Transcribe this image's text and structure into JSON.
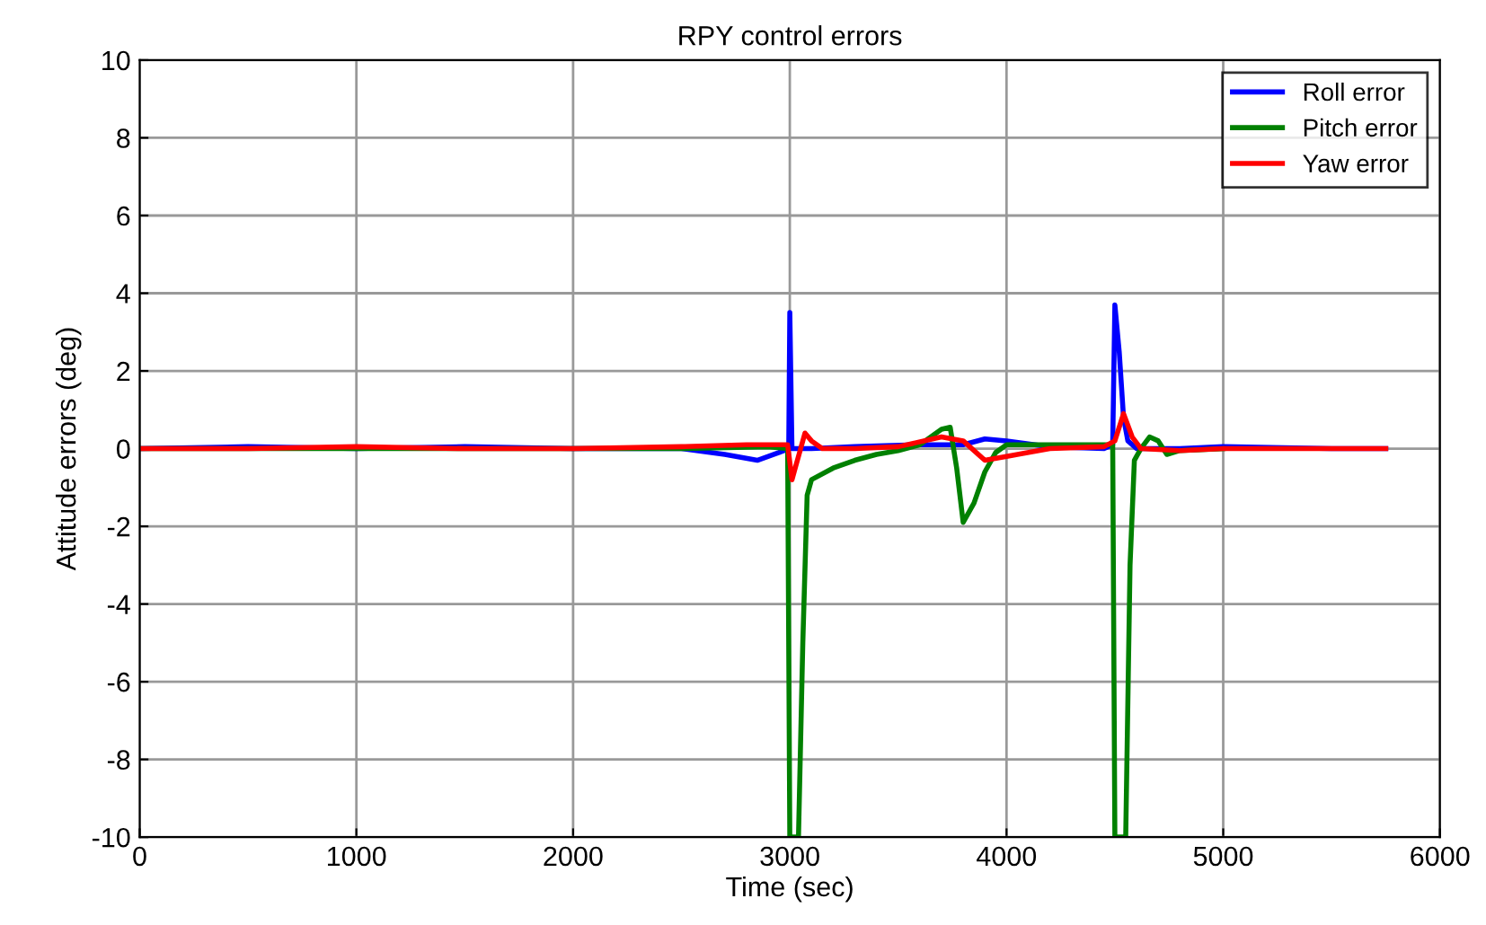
{
  "chart_data": {
    "type": "line",
    "title": "RPY control errors",
    "xlabel": "Time (sec)",
    "ylabel": "Attitude errors (deg)",
    "xlim": [
      0,
      6000
    ],
    "xticks": [
      0,
      1000,
      2000,
      3000,
      4000,
      5000,
      6000
    ],
    "ylim": [
      -10,
      10
    ],
    "yticks": [
      -10,
      -8,
      -6,
      -4,
      -2,
      0,
      2,
      4,
      6,
      8,
      10
    ],
    "grid": true,
    "legend": "top right",
    "marker": "none",
    "line_style": "solid",
    "series": [
      {
        "name": "Roll error",
        "color": "#0000ff",
        "x": [
          0,
          500,
          1000,
          1500,
          2000,
          2500,
          2700,
          2850,
          2950,
          2995,
          3000,
          3010,
          3030,
          3100,
          3300,
          3600,
          3800,
          3900,
          4000,
          4200,
          4450,
          4490,
          4500,
          4520,
          4540,
          4560,
          4600,
          4800,
          5000,
          5500,
          5750
        ],
        "values": [
          0,
          0.05,
          0,
          0.05,
          0,
          0,
          -0.15,
          -0.3,
          -0.1,
          0,
          3.5,
          0,
          0,
          0,
          0.05,
          0.1,
          0.1,
          0.25,
          0.2,
          0.05,
          0,
          0.1,
          3.7,
          2.5,
          0.8,
          0.2,
          0,
          0,
          0.05,
          0,
          0
        ]
      },
      {
        "name": "Pitch error",
        "color": "#008000",
        "x": [
          0,
          500,
          1000,
          1500,
          2000,
          2500,
          2900,
          2990,
          3000,
          3010,
          3040,
          3060,
          3080,
          3100,
          3200,
          3300,
          3400,
          3500,
          3600,
          3700,
          3740,
          3770,
          3800,
          3850,
          3900,
          3950,
          4000,
          4200,
          4490,
          4500,
          4510,
          4550,
          4570,
          4590,
          4620,
          4660,
          4700,
          4740,
          4800,
          5000
        ],
        "values": [
          0,
          0,
          0,
          0,
          0,
          0,
          0.05,
          0,
          -10,
          -10,
          -10,
          -5,
          -1.2,
          -0.8,
          -0.5,
          -0.3,
          -0.15,
          -0.05,
          0.1,
          0.5,
          0.55,
          -0.5,
          -1.9,
          -1.4,
          -0.6,
          -0.1,
          0.1,
          0.1,
          0.1,
          -10,
          -10,
          -10,
          -3,
          -0.3,
          0,
          0.3,
          0.2,
          -0.15,
          -0.05,
          0
        ]
      },
      {
        "name": "Yaw error",
        "color": "#ff0000",
        "x": [
          0,
          500,
          1000,
          1500,
          2000,
          2500,
          2800,
          2990,
          3010,
          3030,
          3070,
          3100,
          3150,
          3300,
          3500,
          3700,
          3800,
          3900,
          4000,
          4200,
          4450,
          4500,
          4540,
          4580,
          4620,
          4800,
          5000,
          5500,
          5750
        ],
        "values": [
          0,
          0,
          0.05,
          0,
          0,
          0.05,
          0.1,
          0.1,
          -0.8,
          -0.4,
          0.4,
          0.2,
          0,
          0,
          0.05,
          0.3,
          0.2,
          -0.3,
          -0.2,
          0,
          0.05,
          0.2,
          0.9,
          0.3,
          0,
          -0.05,
          0,
          0,
          0
        ]
      }
    ]
  }
}
